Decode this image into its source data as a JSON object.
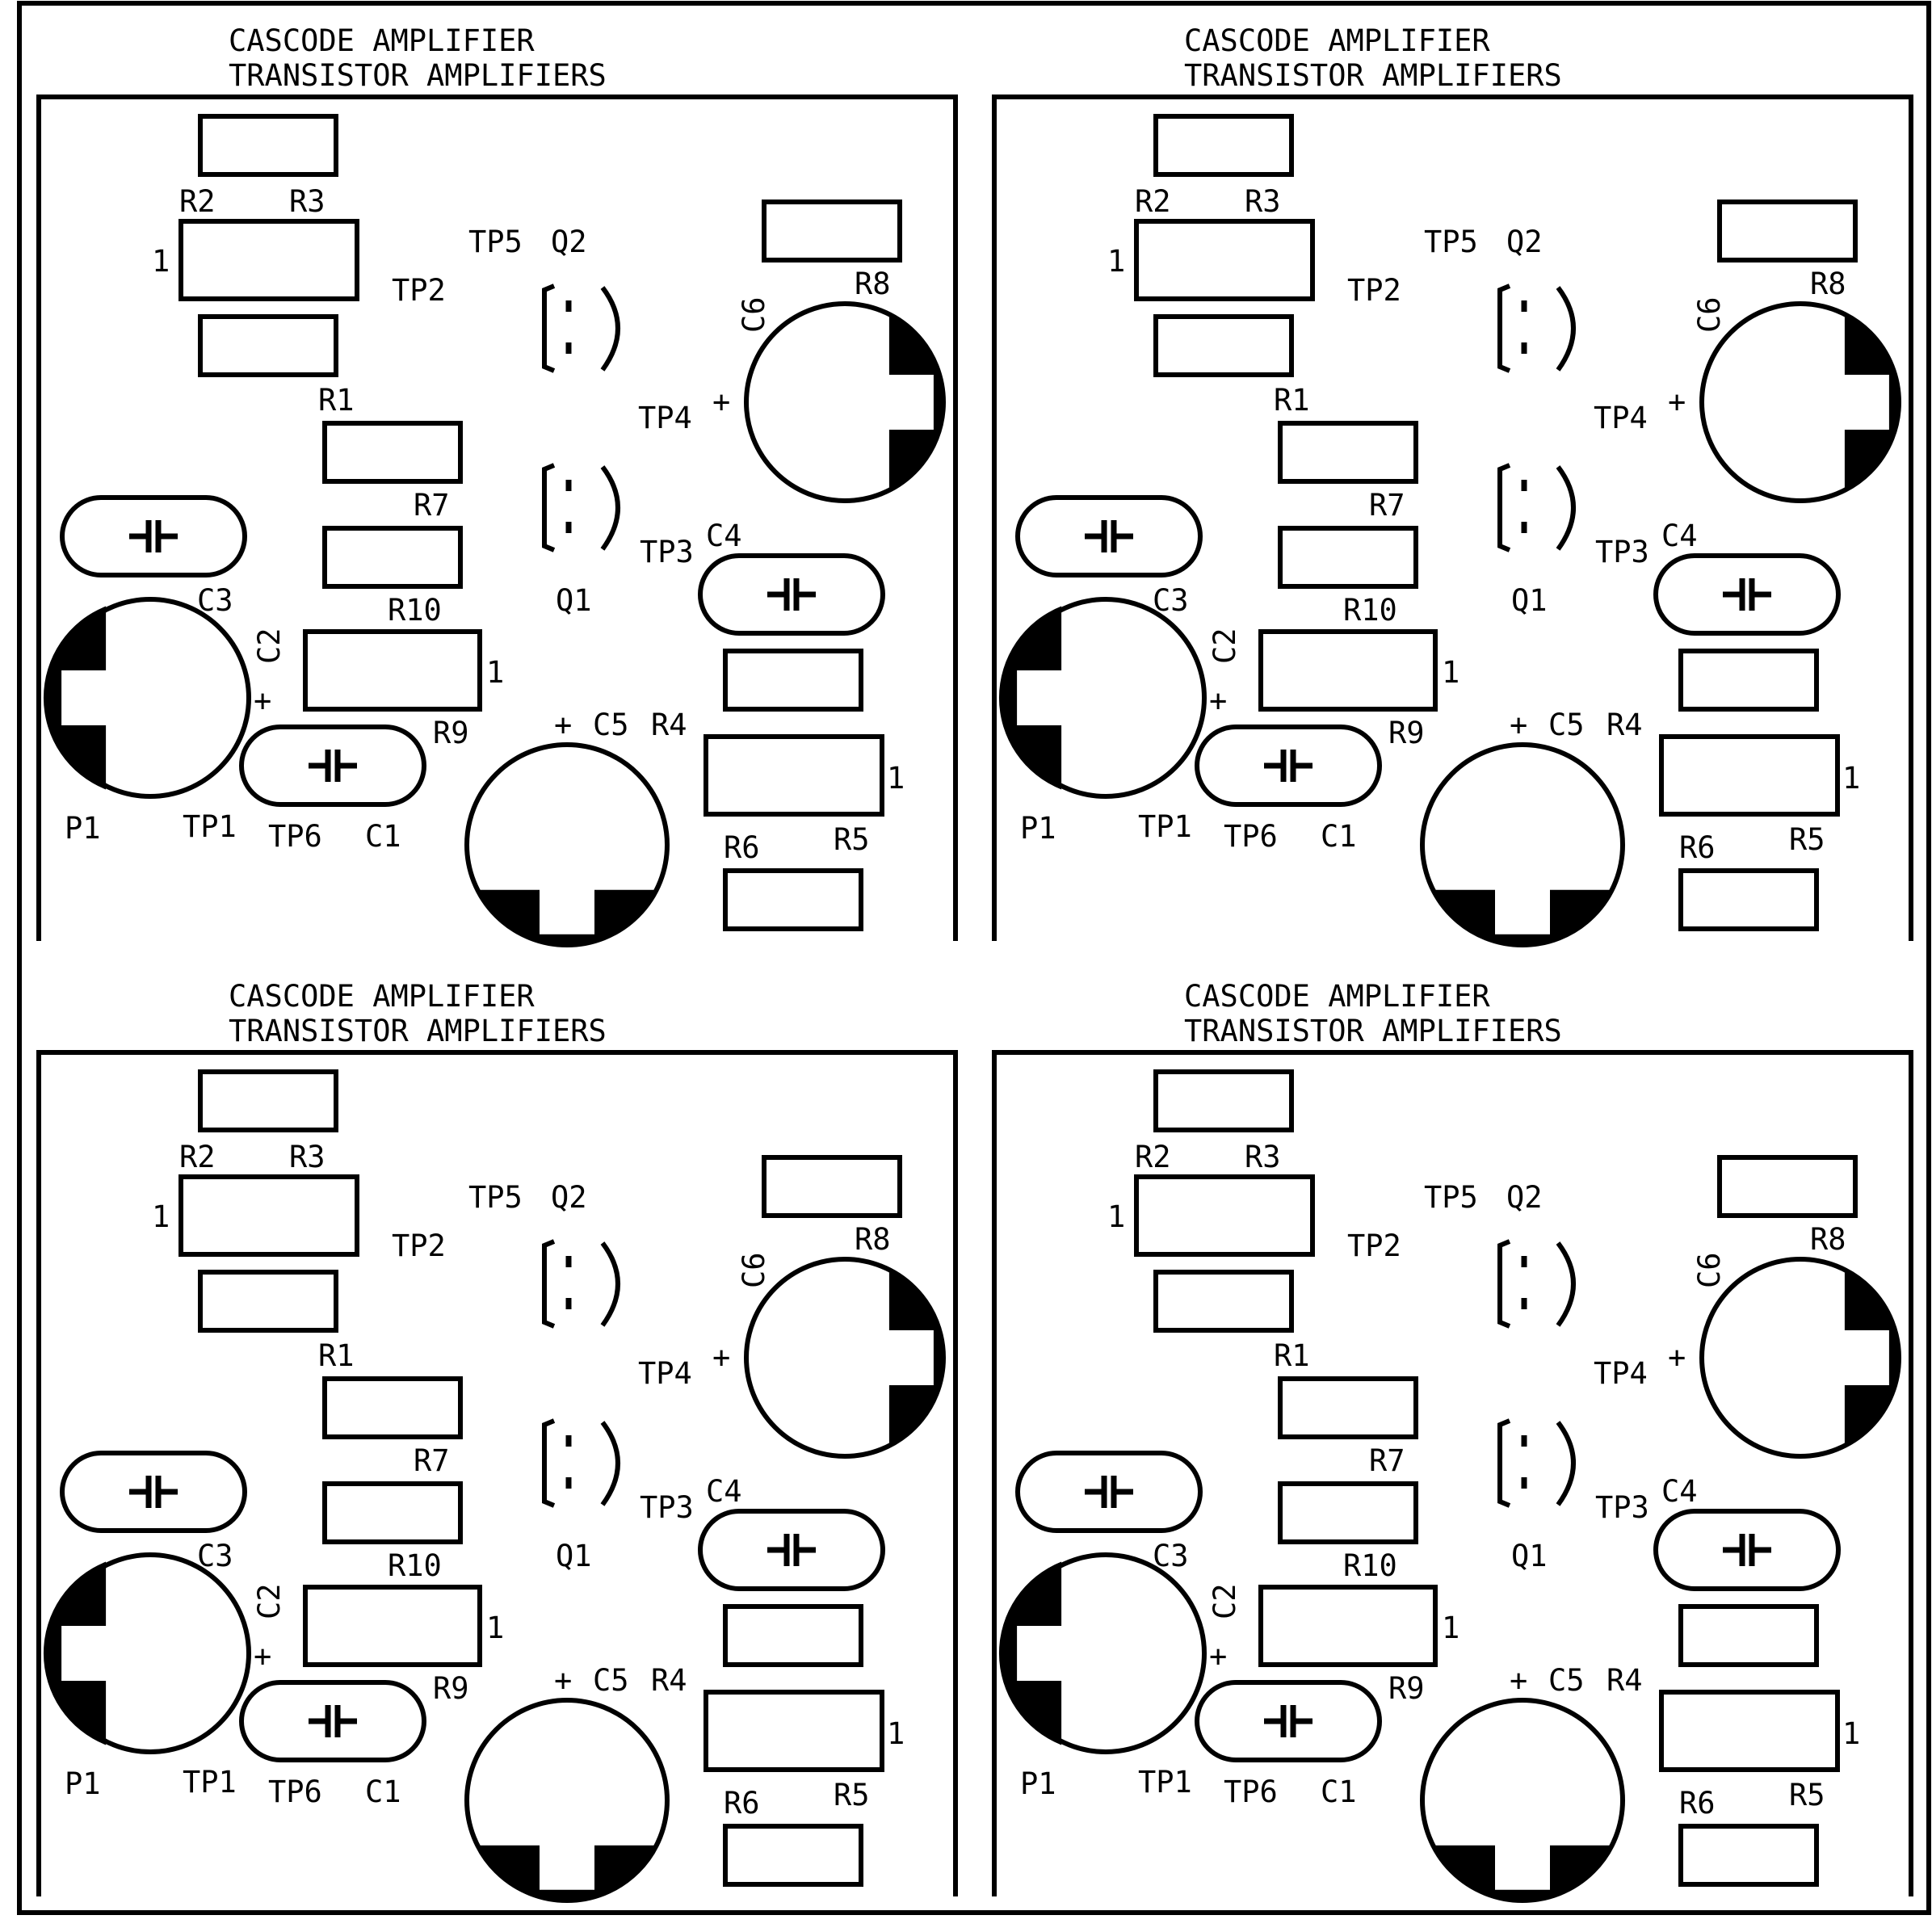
{
  "colors": {
    "background": "#ffffff",
    "silkscreen": "#000000"
  },
  "boards": [
    {
      "title_line1": "CASCODE AMPLIFIER",
      "title_line2": "TRANSISTOR AMPLIFIERS",
      "labels": {
        "R2": "R2",
        "R3": "R3",
        "R1": "R1",
        "R7": "R7",
        "R10": "R10",
        "R9": "R9",
        "R8": "R8",
        "R4": "R4",
        "R5": "R5",
        "R6": "R6",
        "C1": "C1",
        "C2": "C2",
        "C3": "C3",
        "C4": "C4",
        "C5": "C5",
        "C6": "C6",
        "Q1": "Q1",
        "Q2": "Q2",
        "TP1": "TP1",
        "TP2": "TP2",
        "TP3": "TP3",
        "TP4": "TP4",
        "TP5": "TP5",
        "TP6": "TP6",
        "P1": "P1",
        "pin1_a": "1",
        "pin1_b": "1",
        "pin1_c": "1",
        "plus_c2": "+",
        "plus_c5": "+",
        "plus_c6": "+"
      }
    },
    {
      "title_line1": "CASCODE AMPLIFIER",
      "title_line2": "TRANSISTOR AMPLIFIERS",
      "labels": {
        "R2": "R2",
        "R3": "R3",
        "R1": "R1",
        "R7": "R7",
        "R10": "R10",
        "R9": "R9",
        "R8": "R8",
        "R4": "R4",
        "R5": "R5",
        "R6": "R6",
        "C1": "C1",
        "C2": "C2",
        "C3": "C3",
        "C4": "C4",
        "C5": "C5",
        "C6": "C6",
        "Q1": "Q1",
        "Q2": "Q2",
        "TP1": "TP1",
        "TP2": "TP2",
        "TP3": "TP3",
        "TP4": "TP4",
        "TP5": "TP5",
        "TP6": "TP6",
        "P1": "P1",
        "pin1_a": "1",
        "pin1_b": "1",
        "pin1_c": "1",
        "plus_c2": "+",
        "plus_c5": "+",
        "plus_c6": "+"
      }
    },
    {
      "title_line1": "CASCODE AMPLIFIER",
      "title_line2": "TRANSISTOR AMPLIFIERS",
      "labels": {
        "R2": "R2",
        "R3": "R3",
        "R1": "R1",
        "R7": "R7",
        "R10": "R10",
        "R9": "R9",
        "R8": "R8",
        "R4": "R4",
        "R5": "R5",
        "R6": "R6",
        "C1": "C1",
        "C2": "C2",
        "C3": "C3",
        "C4": "C4",
        "C5": "C5",
        "C6": "C6",
        "Q1": "Q1",
        "Q2": "Q2",
        "TP1": "TP1",
        "TP2": "TP2",
        "TP3": "TP3",
        "TP4": "TP4",
        "TP5": "TP5",
        "TP6": "TP6",
        "P1": "P1",
        "pin1_a": "1",
        "pin1_b": "1",
        "pin1_c": "1",
        "plus_c2": "+",
        "plus_c5": "+",
        "plus_c6": "+"
      }
    },
    {
      "title_line1": "CASCODE AMPLIFIER",
      "title_line2": "TRANSISTOR AMPLIFIERS",
      "labels": {
        "R2": "R2",
        "R3": "R3",
        "R1": "R1",
        "R7": "R7",
        "R10": "R10",
        "R9": "R9",
        "R8": "R8",
        "R4": "R4",
        "R5": "R5",
        "R6": "R6",
        "C1": "C1",
        "C2": "C2",
        "C3": "C3",
        "C4": "C4",
        "C5": "C5",
        "C6": "C6",
        "Q1": "Q1",
        "Q2": "Q2",
        "TP1": "TP1",
        "TP2": "TP2",
        "TP3": "TP3",
        "TP4": "TP4",
        "TP5": "TP5",
        "TP6": "TP6",
        "P1": "P1",
        "pin1_a": "1",
        "pin1_b": "1",
        "pin1_c": "1",
        "plus_c2": "+",
        "plus_c5": "+",
        "plus_c6": "+"
      }
    }
  ]
}
